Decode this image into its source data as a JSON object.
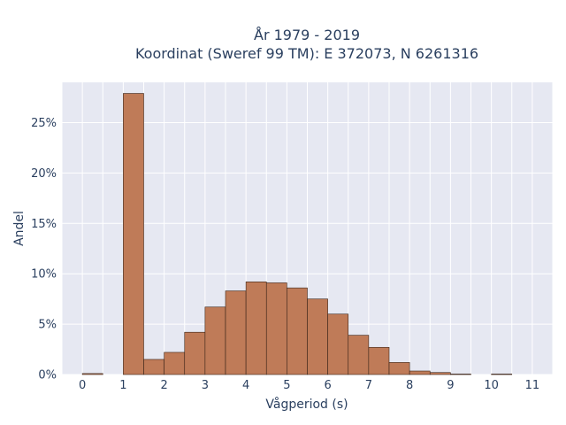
{
  "chart_data": {
    "type": "bar",
    "title": "År 1979 - 2019",
    "subtitle": "Koordinat (Sweref 99 TM): E 372073, N 6261316",
    "xlabel": "Vågperiod (s)",
    "ylabel": "Andel",
    "xlim": [
      -0.5,
      11.5
    ],
    "ylim": [
      0,
      29
    ],
    "x_ticks": [
      0,
      1,
      2,
      3,
      4,
      5,
      6,
      7,
      8,
      9,
      10,
      11
    ],
    "y_ticks": [
      0,
      5,
      10,
      15,
      20,
      25
    ],
    "y_tick_suffix": "%",
    "bin_width": 0.5,
    "bars": [
      {
        "x0": 0.0,
        "value": 0.1
      },
      {
        "x0": 1.0,
        "value": 27.9
      },
      {
        "x0": 1.5,
        "value": 1.5
      },
      {
        "x0": 2.0,
        "value": 2.2
      },
      {
        "x0": 2.5,
        "value": 4.2
      },
      {
        "x0": 3.0,
        "value": 6.7
      },
      {
        "x0": 3.5,
        "value": 8.3
      },
      {
        "x0": 4.0,
        "value": 9.2
      },
      {
        "x0": 4.5,
        "value": 9.1
      },
      {
        "x0": 5.0,
        "value": 8.6
      },
      {
        "x0": 5.5,
        "value": 7.5
      },
      {
        "x0": 6.0,
        "value": 6.0
      },
      {
        "x0": 6.5,
        "value": 3.9
      },
      {
        "x0": 7.0,
        "value": 2.7
      },
      {
        "x0": 7.5,
        "value": 1.2
      },
      {
        "x0": 8.0,
        "value": 0.35
      },
      {
        "x0": 8.5,
        "value": 0.2
      },
      {
        "x0": 9.0,
        "value": 0.05
      },
      {
        "x0": 10.0,
        "value": 0.05
      }
    ],
    "grid": true,
    "colors": {
      "bar_fill": "#bf7b58",
      "bar_edge": "#3a2418",
      "plot_bg": "#e6e8f2",
      "grid": "#ffffff",
      "text": "#2a3f5f"
    }
  }
}
